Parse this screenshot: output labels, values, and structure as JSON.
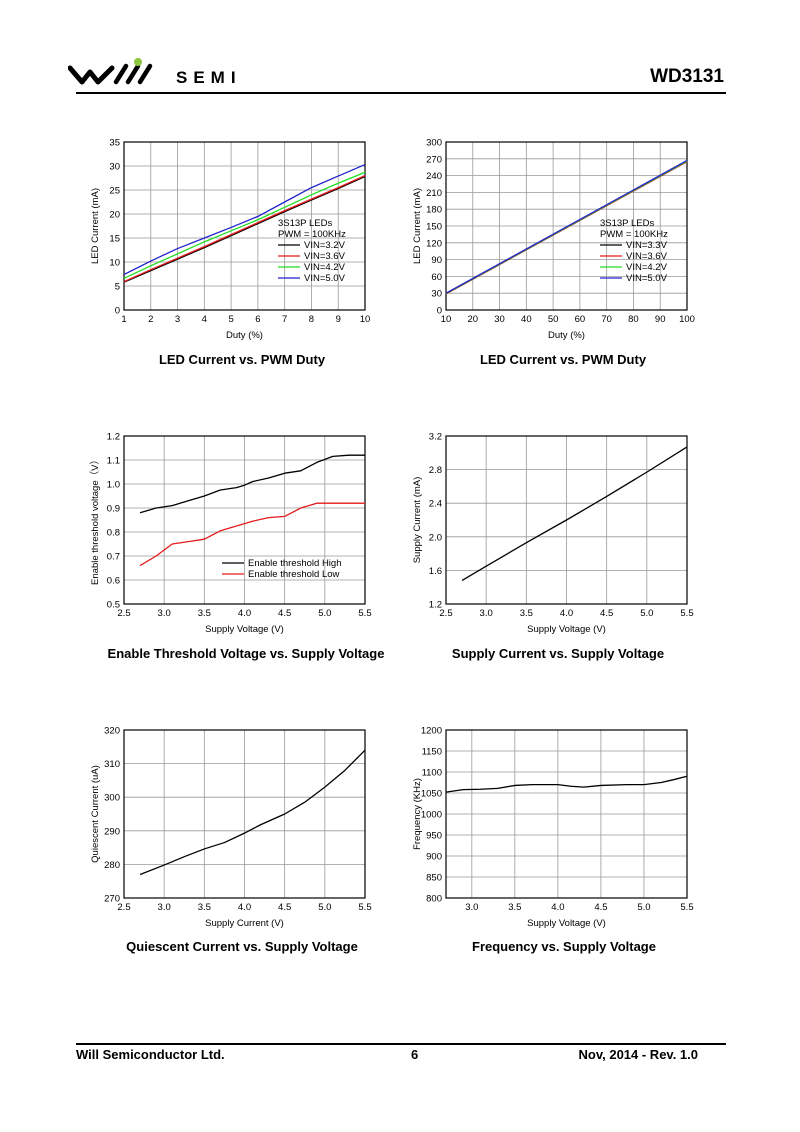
{
  "header": {
    "brand": "SEMI",
    "part_number": "WD3131",
    "colors": {
      "logo_dot": "#8dc63f",
      "logo_mark": "#000000"
    }
  },
  "footer": {
    "company": "Will Semiconductor Ltd.",
    "page": "6",
    "date_rev": "Nov, 2014 - Rev. 1.0"
  },
  "chart_data": [
    {
      "id": "c1",
      "type": "line",
      "caption": "LED Current vs. PWM Duty",
      "xlabel": "Duty (%)",
      "ylabel": "LED Current (mA)",
      "xlim": [
        1,
        10
      ],
      "ylim": [
        0,
        35
      ],
      "xticks": [
        1,
        2,
        3,
        4,
        5,
        6,
        7,
        8,
        9,
        10
      ],
      "xtick_labels": [
        "1",
        "2",
        "3",
        "4",
        "5",
        "6",
        "7",
        "8",
        "9",
        "10"
      ],
      "yticks": [
        0,
        5,
        10,
        15,
        20,
        25,
        30,
        35
      ],
      "ytick_labels": [
        "0",
        "5",
        "10",
        "15",
        "20",
        "25",
        "30",
        "35"
      ],
      "grid": true,
      "legend_placement": "right",
      "legend_title": [
        "3S13P LEDs",
        "PWM = 100KHz"
      ],
      "series": [
        {
          "name": "VIN=3.2V",
          "color": "#000000",
          "x": [
            1,
            2,
            3,
            4,
            5,
            6,
            7,
            8,
            9,
            10
          ],
          "y": [
            5.8,
            8.2,
            10.6,
            13.0,
            15.5,
            18.0,
            20.5,
            22.9,
            25.3,
            27.8
          ]
        },
        {
          "name": "VIN=3.6V",
          "color": "#e41a1c",
          "x": [
            1,
            2,
            3,
            4,
            5,
            6,
            7,
            8,
            9,
            10
          ],
          "y": [
            5.9,
            8.4,
            10.8,
            13.2,
            15.7,
            18.2,
            20.7,
            23.1,
            25.5,
            28.0
          ]
        },
        {
          "name": "VIN=4.2V",
          "color": "#22dd22",
          "x": [
            1,
            2,
            3,
            4,
            5,
            6,
            7,
            8,
            9,
            10
          ],
          "y": [
            6.6,
            9.2,
            11.7,
            14.2,
            16.5,
            18.8,
            21.4,
            24.0,
            26.4,
            28.7
          ]
        },
        {
          "name": "VIN=5.0V",
          "color": "#2222cc",
          "x": [
            1,
            2,
            3,
            4,
            5,
            6,
            7,
            8,
            9,
            10
          ],
          "y": [
            7.4,
            10.2,
            12.8,
            15.0,
            17.2,
            19.5,
            22.5,
            25.5,
            27.9,
            30.3
          ]
        }
      ]
    },
    {
      "id": "c2",
      "type": "line",
      "caption": "LED Current vs. PWM Duty",
      "xlabel": "Duty (%)",
      "ylabel": "LED Current (mA)",
      "xlim": [
        10,
        100
      ],
      "ylim": [
        0,
        300
      ],
      "xticks": [
        10,
        20,
        30,
        40,
        50,
        60,
        70,
        80,
        90,
        100
      ],
      "xtick_labels": [
        "10",
        "20",
        "30",
        "40",
        "50",
        "60",
        "70",
        "80",
        "90",
        "100"
      ],
      "yticks": [
        0,
        30,
        60,
        90,
        120,
        150,
        180,
        210,
        240,
        270,
        300
      ],
      "ytick_labels": [
        "0",
        "30",
        "60",
        "90",
        "120",
        "150",
        "180",
        "210",
        "240",
        "270",
        "300"
      ],
      "grid": true,
      "legend_placement": "right",
      "legend_title": [
        "3S13P LEDs",
        "PWM = 100KHz"
      ],
      "series": [
        {
          "name": "VIN=3.3V",
          "color": "#000000",
          "x": [
            10,
            100
          ],
          "y": [
            29,
            265
          ]
        },
        {
          "name": "VIN=3.6V",
          "color": "#e41a1c",
          "x": [
            10,
            100
          ],
          "y": [
            29,
            265
          ]
        },
        {
          "name": "VIN=4.2V",
          "color": "#22dd22",
          "x": [
            10,
            100
          ],
          "y": [
            29.5,
            266
          ]
        },
        {
          "name": "VIN=5.0V",
          "color": "#2222cc",
          "x": [
            10,
            100
          ],
          "y": [
            30,
            267
          ]
        }
      ]
    },
    {
      "id": "c3",
      "type": "line",
      "caption": "Enable Threshold Voltage vs. Supply Voltage",
      "xlabel": "Supply Voltage (V)",
      "ylabel": "Enable threshold voltage（V）",
      "xlim": [
        2.5,
        5.5
      ],
      "ylim": [
        0.5,
        1.2
      ],
      "xticks": [
        2.5,
        3.0,
        3.5,
        4.0,
        4.5,
        5.0,
        5.5
      ],
      "xtick_labels": [
        "2.5",
        "3.0",
        "3.5",
        "4.0",
        "4.5",
        "5.0",
        "5.5"
      ],
      "yticks": [
        0.5,
        0.6,
        0.7,
        0.8,
        0.9,
        1.0,
        1.1,
        1.2
      ],
      "ytick_labels": [
        "0.5",
        "0.6",
        "0.7",
        "0.8",
        "0.9",
        "1.0",
        "1.1",
        "1.2"
      ],
      "grid": true,
      "legend_placement": "bottom-right",
      "legend_title": [],
      "series": [
        {
          "name": "Enable threshold High",
          "color": "#000000",
          "x": [
            2.7,
            2.9,
            3.1,
            3.3,
            3.5,
            3.7,
            3.9,
            4.0,
            4.1,
            4.3,
            4.5,
            4.7,
            4.9,
            5.1,
            5.3,
            5.5
          ],
          "y": [
            0.88,
            0.9,
            0.91,
            0.93,
            0.95,
            0.975,
            0.985,
            0.995,
            1.01,
            1.025,
            1.045,
            1.055,
            1.09,
            1.115,
            1.12,
            1.12
          ]
        },
        {
          "name": "Enable threshold Low",
          "color": "#e41a1c",
          "x": [
            2.7,
            2.9,
            3.1,
            3.3,
            3.5,
            3.7,
            3.9,
            4.1,
            4.3,
            4.5,
            4.7,
            4.9,
            5.1,
            5.3,
            5.5
          ],
          "y": [
            0.66,
            0.7,
            0.75,
            0.76,
            0.77,
            0.805,
            0.825,
            0.845,
            0.86,
            0.865,
            0.9,
            0.92,
            0.92,
            0.92,
            0.92
          ]
        }
      ]
    },
    {
      "id": "c4",
      "type": "line",
      "caption": "Supply Current vs. Supply Voltage",
      "xlabel": "Supply Voltage (V)",
      "ylabel": "Supply Current (mA)",
      "xlim": [
        2.5,
        5.5
      ],
      "ylim": [
        1.2,
        3.2
      ],
      "xticks": [
        2.5,
        3.0,
        3.5,
        4.0,
        4.5,
        5.0,
        5.5
      ],
      "xtick_labels": [
        "2.5",
        "3.0",
        "3.5",
        "4.0",
        "4.5",
        "5.0",
        "5.5"
      ],
      "yticks": [
        1.2,
        1.6,
        2.0,
        2.4,
        2.8,
        3.2
      ],
      "ytick_labels": [
        "1.2",
        "1.6",
        "2.0",
        "2.4",
        "2.8",
        "3.2"
      ],
      "grid": true,
      "legend_placement": "none",
      "legend_title": [],
      "series": [
        {
          "name": "",
          "color": "#000000",
          "x": [
            2.7,
            3.0,
            3.5,
            4.0,
            4.5,
            5.0,
            5.5
          ],
          "y": [
            1.48,
            1.65,
            1.93,
            2.2,
            2.48,
            2.77,
            3.07
          ]
        }
      ]
    },
    {
      "id": "c5",
      "type": "line",
      "caption": "Quiescent Current vs. Supply Voltage",
      "xlabel": "Supply Current (V)",
      "ylabel": "Quiescent Current (uA)",
      "xlim": [
        2.5,
        5.5
      ],
      "ylim": [
        270,
        320
      ],
      "xticks": [
        2.5,
        3.0,
        3.5,
        4.0,
        4.5,
        5.0,
        5.5
      ],
      "xtick_labels": [
        "2.5",
        "3.0",
        "3.5",
        "4.0",
        "4.5",
        "5.0",
        "5.5"
      ],
      "yticks": [
        270,
        280,
        290,
        300,
        310,
        320
      ],
      "ytick_labels": [
        "270",
        "280",
        "290",
        "300",
        "310",
        "320"
      ],
      "grid": true,
      "legend_placement": "none",
      "legend_title": [],
      "series": [
        {
          "name": "",
          "color": "#000000",
          "x": [
            2.7,
            3.0,
            3.25,
            3.5,
            3.75,
            4.0,
            4.2,
            4.5,
            4.75,
            5.0,
            5.25,
            5.5
          ],
          "y": [
            277,
            279.8,
            282.3,
            284.6,
            286.5,
            289.3,
            291.8,
            295.0,
            298.5,
            303.0,
            308.0,
            314.0
          ]
        }
      ]
    },
    {
      "id": "c6",
      "type": "line",
      "caption": "Frequency vs. Supply Voltage",
      "xlabel": "Supply Voltage (V)",
      "ylabel": "Frequency (KHz)",
      "xlim": [
        2.7,
        5.5
      ],
      "ylim": [
        800,
        1200
      ],
      "xticks": [
        3.0,
        3.5,
        4.0,
        4.5,
        5.0,
        5.5
      ],
      "xtick_labels": [
        "3.0",
        "3.5",
        "4.0",
        "4.5",
        "5.0",
        "5.5"
      ],
      "yticks": [
        800,
        850,
        900,
        950,
        1000,
        1050,
        1100,
        1150,
        1200
      ],
      "ytick_labels": [
        "800",
        "850",
        "900",
        "950",
        "1000",
        "1050",
        "1100",
        "1150",
        "1200"
      ],
      "grid": true,
      "legend_placement": "none",
      "legend_title": [],
      "series": [
        {
          "name": "",
          "color": "#000000",
          "x": [
            2.7,
            2.9,
            3.1,
            3.3,
            3.5,
            3.7,
            4.0,
            4.15,
            4.3,
            4.5,
            4.8,
            5.0,
            5.2,
            5.35,
            5.5
          ],
          "y": [
            1052,
            1058,
            1059,
            1061,
            1068,
            1070,
            1070,
            1066,
            1064,
            1068,
            1070,
            1070,
            1075,
            1082,
            1090
          ]
        }
      ]
    }
  ]
}
